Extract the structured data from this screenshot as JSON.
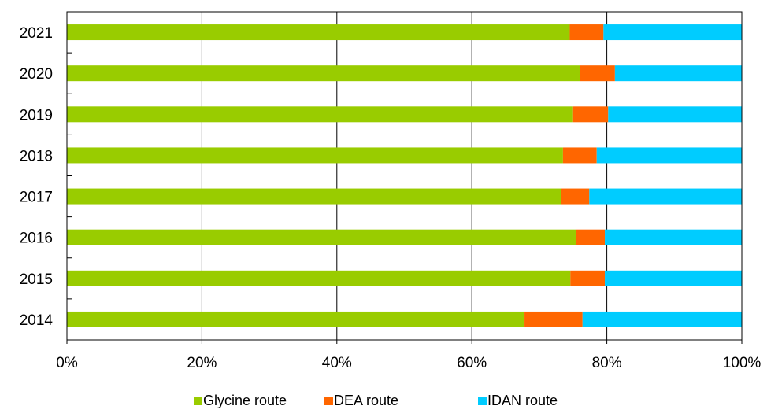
{
  "chart_data": {
    "type": "bar",
    "orientation": "horizontal",
    "stacked": "percent",
    "categories": [
      "2021",
      "2020",
      "2019",
      "2018",
      "2017",
      "2016",
      "2015",
      "2014"
    ],
    "series": [
      {
        "name": "Glycine route",
        "color": "#99cc00",
        "values": [
          74.5,
          76.0,
          75.0,
          73.5,
          73.2,
          75.4,
          74.6,
          67.8
        ]
      },
      {
        "name": "DEA route",
        "color": "#ff6600",
        "values": [
          5.0,
          5.2,
          5.2,
          5.0,
          4.2,
          4.3,
          5.1,
          8.6
        ]
      },
      {
        "name": "IDAN route",
        "color": "#00ccff",
        "values": [
          20.5,
          18.8,
          19.8,
          21.5,
          22.6,
          20.3,
          20.3,
          23.6
        ]
      }
    ],
    "x_ticks": [
      "0%",
      "20%",
      "40%",
      "60%",
      "80%",
      "100%"
    ],
    "xlim": [
      0,
      100
    ],
    "grid": "vertical",
    "legend_position": "bottom"
  }
}
